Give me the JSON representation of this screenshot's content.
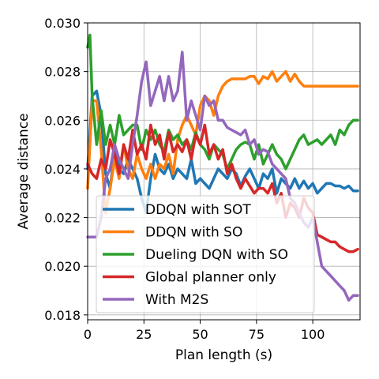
{
  "chart_data": {
    "type": "line",
    "title": "",
    "xlabel": "Plan length (s)",
    "ylabel": "Average distance",
    "xlim": [
      0,
      121
    ],
    "ylim": [
      0.0178,
      0.03
    ],
    "xticks": [
      0,
      25,
      50,
      75,
      100
    ],
    "xtick_labels": [
      "0",
      "25",
      "50",
      "75",
      "100"
    ],
    "yticks": [
      0.018,
      0.02,
      0.022,
      0.024,
      0.026,
      0.028,
      0.03
    ],
    "ytick_labels": [
      "0.018",
      "0.020",
      "0.022",
      "0.024",
      "0.026",
      "0.028",
      "0.030"
    ],
    "grid": true,
    "legend_position": "lower-left",
    "series": [
      {
        "name": "DDQN with SOT",
        "color": "#1f77b4",
        "x": [
          0,
          2,
          4,
          6,
          8,
          10,
          12,
          14,
          16,
          18,
          20,
          22,
          24,
          26,
          28,
          30,
          32,
          34,
          36,
          38,
          40,
          42,
          44,
          46,
          48,
          50,
          52,
          54,
          56,
          58,
          60,
          62,
          64,
          66,
          68,
          70,
          72,
          74,
          76,
          78,
          80,
          82,
          84,
          86,
          88,
          90,
          92,
          94,
          96,
          98,
          100,
          102,
          104,
          106,
          108,
          110,
          112,
          114,
          116,
          118,
          120
        ],
        "y": [
          0.024,
          0.027,
          0.0272,
          0.0262,
          0.0238,
          0.0232,
          0.0248,
          0.024,
          0.0238,
          0.0244,
          0.024,
          0.0236,
          0.0228,
          0.0222,
          0.0236,
          0.0246,
          0.024,
          0.0238,
          0.0242,
          0.0236,
          0.024,
          0.0238,
          0.0236,
          0.0244,
          0.0234,
          0.0236,
          0.0234,
          0.0232,
          0.0236,
          0.024,
          0.0238,
          0.0236,
          0.024,
          0.0238,
          0.0233,
          0.0237,
          0.024,
          0.0236,
          0.0232,
          0.0238,
          0.0236,
          0.024,
          0.023,
          0.0236,
          0.0234,
          0.0232,
          0.0236,
          0.0232,
          0.0235,
          0.0232,
          0.0234,
          0.023,
          0.0232,
          0.0234,
          0.0234,
          0.0233,
          0.0233,
          0.0232,
          0.0233,
          0.0231,
          0.0231
        ]
      },
      {
        "name": "DDQN with SO",
        "color": "#ff7f0e",
        "x": [
          0,
          2,
          4,
          6,
          8,
          10,
          12,
          14,
          16,
          18,
          20,
          22,
          24,
          26,
          28,
          30,
          32,
          34,
          36,
          38,
          40,
          42,
          44,
          46,
          48,
          50,
          52,
          54,
          56,
          58,
          60,
          62,
          64,
          66,
          68,
          70,
          72,
          74,
          76,
          78,
          80,
          82,
          84,
          86,
          88,
          90,
          92,
          94,
          96,
          98,
          100,
          102,
          104,
          106,
          108,
          110,
          112,
          114,
          116,
          118,
          120
        ],
        "y": [
          0.0232,
          0.0268,
          0.0268,
          0.0248,
          0.0222,
          0.0232,
          0.0244,
          0.0236,
          0.025,
          0.024,
          0.0236,
          0.0246,
          0.024,
          0.0236,
          0.0242,
          0.0236,
          0.0242,
          0.024,
          0.0246,
          0.0238,
          0.0252,
          0.0258,
          0.0262,
          0.0258,
          0.0254,
          0.0266,
          0.027,
          0.0268,
          0.0262,
          0.027,
          0.0274,
          0.0276,
          0.0277,
          0.0277,
          0.0277,
          0.0277,
          0.0278,
          0.0278,
          0.0275,
          0.0278,
          0.0277,
          0.028,
          0.0276,
          0.0278,
          0.028,
          0.0276,
          0.0279,
          0.0276,
          0.0274,
          0.0274,
          0.0274,
          0.0274,
          0.0274,
          0.0274,
          0.0274,
          0.0274,
          0.0274,
          0.0274,
          0.0274,
          0.0274,
          0.0274
        ]
      },
      {
        "name": "Dueling DQN with SO",
        "color": "#2ca02c",
        "x": [
          0,
          1,
          2,
          4,
          6,
          8,
          10,
          12,
          14,
          16,
          18,
          20,
          22,
          24,
          26,
          28,
          30,
          32,
          34,
          36,
          38,
          40,
          42,
          44,
          46,
          48,
          50,
          52,
          54,
          56,
          58,
          60,
          62,
          64,
          66,
          68,
          70,
          72,
          74,
          76,
          78,
          80,
          82,
          84,
          86,
          88,
          90,
          92,
          94,
          96,
          98,
          100,
          102,
          104,
          106,
          108,
          110,
          112,
          114,
          116,
          118,
          120
        ],
        "y": [
          0.029,
          0.0295,
          0.027,
          0.025,
          0.0264,
          0.025,
          0.0258,
          0.025,
          0.0262,
          0.0254,
          0.0256,
          0.0258,
          0.0258,
          0.0248,
          0.0256,
          0.0252,
          0.0256,
          0.025,
          0.0247,
          0.0256,
          0.0252,
          0.0254,
          0.025,
          0.0252,
          0.0248,
          0.0255,
          0.025,
          0.0248,
          0.0244,
          0.025,
          0.0248,
          0.0246,
          0.024,
          0.0244,
          0.0248,
          0.025,
          0.0251,
          0.025,
          0.0244,
          0.025,
          0.0242,
          0.0246,
          0.025,
          0.0246,
          0.0244,
          0.024,
          0.0244,
          0.0248,
          0.0252,
          0.0254,
          0.025,
          0.0251,
          0.0252,
          0.025,
          0.0252,
          0.0254,
          0.025,
          0.0256,
          0.0254,
          0.0258,
          0.026,
          0.026
        ]
      },
      {
        "name": "Global planner only",
        "color": "#d62728",
        "x": [
          0,
          2,
          4,
          6,
          8,
          10,
          12,
          14,
          16,
          18,
          20,
          22,
          24,
          26,
          28,
          30,
          32,
          34,
          36,
          38,
          40,
          42,
          44,
          46,
          48,
          50,
          52,
          54,
          56,
          58,
          60,
          62,
          64,
          66,
          68,
          70,
          72,
          74,
          76,
          78,
          80,
          82,
          84,
          86,
          88,
          90,
          92,
          94,
          96,
          98,
          100,
          102,
          104,
          106,
          108,
          110,
          112,
          114,
          116,
          118,
          120
        ],
        "y": [
          0.0242,
          0.0238,
          0.0236,
          0.0244,
          0.024,
          0.0252,
          0.0246,
          0.0238,
          0.025,
          0.0244,
          0.0256,
          0.0246,
          0.025,
          0.0244,
          0.0258,
          0.025,
          0.0254,
          0.0244,
          0.0255,
          0.0247,
          0.025,
          0.0247,
          0.0252,
          0.0244,
          0.0254,
          0.025,
          0.0258,
          0.0246,
          0.025,
          0.0244,
          0.0248,
          0.0238,
          0.0242,
          0.0236,
          0.0232,
          0.0236,
          0.0233,
          0.023,
          0.0232,
          0.0232,
          0.023,
          0.0234,
          0.0226,
          0.023,
          0.022,
          0.0226,
          0.0224,
          0.022,
          0.0228,
          0.0224,
          0.0222,
          0.0213,
          0.0212,
          0.0211,
          0.021,
          0.021,
          0.0208,
          0.0207,
          0.0206,
          0.0206,
          0.0207
        ]
      },
      {
        "name": "With M2S",
        "color": "#9467bd",
        "x": [
          0,
          2,
          4,
          6,
          8,
          10,
          12,
          14,
          16,
          18,
          20,
          22,
          24,
          26,
          28,
          30,
          32,
          34,
          36,
          38,
          40,
          42,
          44,
          46,
          48,
          50,
          52,
          54,
          56,
          58,
          60,
          62,
          64,
          66,
          68,
          70,
          72,
          74,
          76,
          78,
          80,
          82,
          84,
          86,
          88,
          90,
          92,
          94,
          96,
          98,
          100,
          102,
          104,
          106,
          108,
          110,
          112,
          114,
          116,
          118,
          120
        ],
        "y": [
          0.0212,
          0.0212,
          0.0212,
          0.022,
          0.0236,
          0.024,
          0.025,
          0.0244,
          0.024,
          0.0236,
          0.025,
          0.0262,
          0.0276,
          0.0284,
          0.0266,
          0.0272,
          0.0278,
          0.0268,
          0.0278,
          0.0268,
          0.0272,
          0.0288,
          0.026,
          0.0268,
          0.0262,
          0.0256,
          0.027,
          0.0266,
          0.0268,
          0.026,
          0.026,
          0.0257,
          0.0256,
          0.0255,
          0.0254,
          0.0256,
          0.025,
          0.0252,
          0.0246,
          0.0248,
          0.0247,
          0.0242,
          0.024,
          0.0238,
          0.0236,
          0.0228,
          0.0226,
          0.0222,
          0.0218,
          0.0216,
          0.022,
          0.021,
          0.02,
          0.0198,
          0.0196,
          0.0194,
          0.0192,
          0.019,
          0.0186,
          0.0188,
          0.0188
        ]
      }
    ]
  }
}
